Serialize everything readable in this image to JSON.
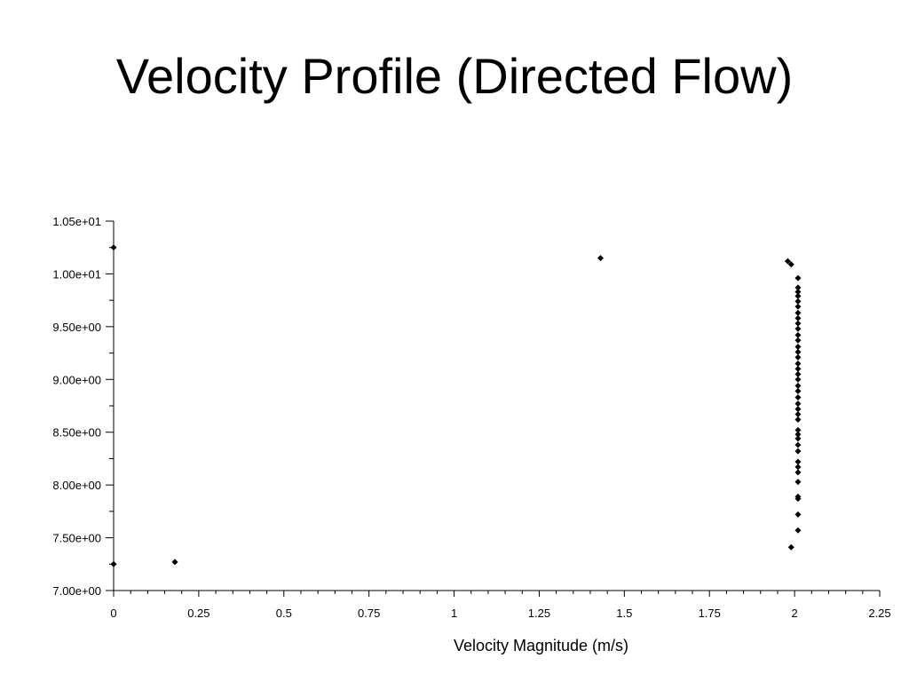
{
  "slide": {
    "title": "Velocity Profile (Directed Flow)"
  },
  "chart_data": {
    "type": "scatter",
    "title": "",
    "xlabel": "Velocity Magnitude (m/s)",
    "ylabel": "",
    "xlim": [
      0,
      2.25
    ],
    "ylim": [
      7.0,
      10.5
    ],
    "x_ticks": [
      0,
      0.25,
      0.5,
      0.75,
      1,
      1.25,
      1.5,
      1.75,
      2,
      2.25
    ],
    "x_tick_labels": [
      "0",
      "0.25",
      "0.5",
      "0.75",
      "1",
      "1.25",
      "1.5",
      "1.75",
      "2",
      "2.25"
    ],
    "y_ticks": [
      7.0,
      7.5,
      8.0,
      8.5,
      9.0,
      9.5,
      10.0,
      10.5
    ],
    "y_tick_labels": [
      "7.00e+00",
      "7.50e+00",
      "8.00e+00",
      "8.50e+00",
      "9.00e+00",
      "9.50e+00",
      "1.00e+01",
      "1.05e+01"
    ],
    "grid": false,
    "marker_color": "#000000",
    "points": [
      [
        0.0,
        10.25
      ],
      [
        0.0,
        7.25
      ],
      [
        0.18,
        7.27
      ],
      [
        1.43,
        10.15
      ],
      [
        1.98,
        10.12
      ],
      [
        1.99,
        10.09
      ],
      [
        1.99,
        7.41
      ],
      [
        2.01,
        9.96
      ],
      [
        2.01,
        9.87
      ],
      [
        2.01,
        9.83
      ],
      [
        2.01,
        9.79
      ],
      [
        2.01,
        9.74
      ],
      [
        2.01,
        9.69
      ],
      [
        2.01,
        9.63
      ],
      [
        2.01,
        9.58
      ],
      [
        2.01,
        9.53
      ],
      [
        2.01,
        9.48
      ],
      [
        2.01,
        9.42
      ],
      [
        2.01,
        9.37
      ],
      [
        2.01,
        9.31
      ],
      [
        2.01,
        9.26
      ],
      [
        2.01,
        9.21
      ],
      [
        2.01,
        9.15
      ],
      [
        2.01,
        9.1
      ],
      [
        2.01,
        9.05
      ],
      [
        2.01,
        9.0
      ],
      [
        2.01,
        8.94
      ],
      [
        2.01,
        8.89
      ],
      [
        2.01,
        8.83
      ],
      [
        2.01,
        8.77
      ],
      [
        2.01,
        8.72
      ],
      [
        2.01,
        8.67
      ],
      [
        2.01,
        8.62
      ],
      [
        2.01,
        8.52
      ],
      [
        2.01,
        8.48
      ],
      [
        2.01,
        8.44
      ],
      [
        2.01,
        8.38
      ],
      [
        2.01,
        8.32
      ],
      [
        2.01,
        8.22
      ],
      [
        2.01,
        8.17
      ],
      [
        2.01,
        8.12
      ],
      [
        2.01,
        8.03
      ],
      [
        2.01,
        7.89
      ],
      [
        2.01,
        7.87
      ],
      [
        2.01,
        7.72
      ],
      [
        2.01,
        7.57
      ]
    ]
  }
}
